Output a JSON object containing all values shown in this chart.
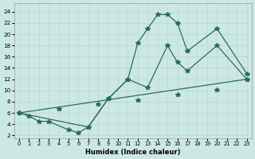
{
  "xlabel": "Humidex (Indice chaleur)",
  "background_color": "#cce8e5",
  "grid_color_minor": "#c0d8d4",
  "grid_color_major": "#b8ceca",
  "line_color": "#2a6b60",
  "xlim": [
    -0.5,
    23.5
  ],
  "ylim": [
    1.5,
    25.5
  ],
  "xticks": [
    0,
    1,
    2,
    3,
    4,
    5,
    6,
    7,
    8,
    9,
    10,
    11,
    12,
    13,
    14,
    15,
    16,
    17,
    18,
    19,
    20,
    21,
    22,
    23
  ],
  "yticks": [
    2,
    4,
    6,
    8,
    10,
    12,
    14,
    16,
    18,
    20,
    22,
    24
  ],
  "line1_x": [
    0,
    1,
    2,
    3,
    5,
    6,
    7,
    9,
    11,
    12,
    13,
    14,
    15,
    16,
    17,
    20,
    23
  ],
  "line1_y": [
    6,
    5.5,
    4.5,
    4.5,
    3,
    2.5,
    3.5,
    8.5,
    12,
    18.5,
    21,
    23.5,
    23.5,
    22,
    17,
    21,
    13
  ],
  "line2_x": [
    0,
    7,
    9,
    11,
    13,
    15,
    16,
    17,
    20,
    23
  ],
  "line2_y": [
    6,
    3.5,
    8.5,
    12,
    10.5,
    18,
    15,
    13.5,
    18,
    12
  ],
  "line3_x": [
    0,
    23
  ],
  "line3_y": [
    6,
    12
  ],
  "line3_markers_x": [
    0,
    4,
    8,
    12,
    16,
    20,
    23
  ],
  "line3_markers_y": [
    6,
    6.7,
    7.5,
    8.3,
    9.2,
    10.1,
    12
  ]
}
